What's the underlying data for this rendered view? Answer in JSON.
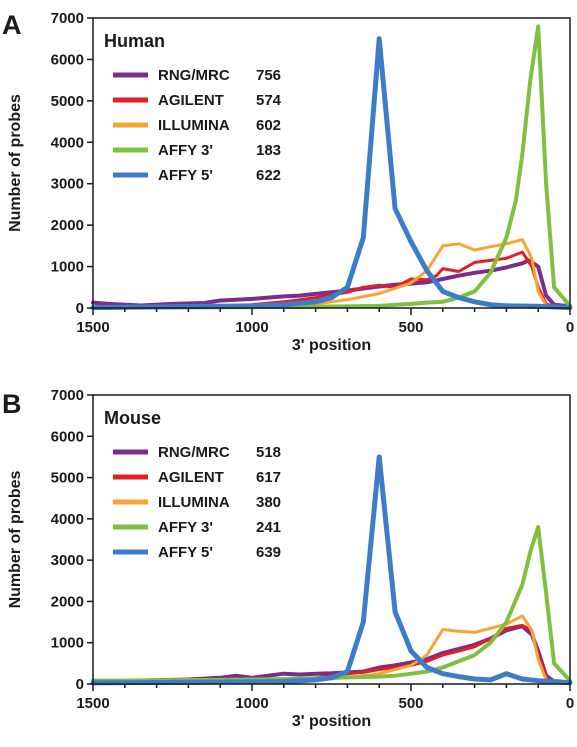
{
  "chart_data": [
    {
      "type": "line",
      "panel_letter": "A",
      "title": "Human",
      "xlabel": "3' position",
      "ylabel": "Number of probes",
      "xlim": [
        1500,
        0
      ],
      "ylim": [
        0,
        7000
      ],
      "x_reversed": true,
      "xticks": [
        1500,
        1000,
        500,
        0
      ],
      "yticks": [
        0,
        1000,
        2000,
        3000,
        4000,
        5000,
        6000,
        7000
      ],
      "legend_position": "top-left",
      "series": [
        {
          "name": "RNG/MRC",
          "count": "756",
          "color": "#7b2d8e",
          "width": 4,
          "points": [
            [
              1500,
              130
            ],
            [
              1450,
              100
            ],
            [
              1350,
              60
            ],
            [
              1250,
              100
            ],
            [
              1150,
              120
            ],
            [
              1100,
              180
            ],
            [
              1050,
              200
            ],
            [
              1000,
              220
            ],
            [
              950,
              250
            ],
            [
              900,
              280
            ],
            [
              850,
              300
            ],
            [
              800,
              340
            ],
            [
              750,
              380
            ],
            [
              700,
              420
            ],
            [
              650,
              470
            ],
            [
              600,
              520
            ],
            [
              550,
              560
            ],
            [
              500,
              590
            ],
            [
              450,
              620
            ],
            [
              400,
              700
            ],
            [
              350,
              780
            ],
            [
              300,
              850
            ],
            [
              250,
              900
            ],
            [
              200,
              980
            ],
            [
              150,
              1080
            ],
            [
              130,
              1150
            ],
            [
              100,
              1000
            ],
            [
              75,
              300
            ],
            [
              50,
              80
            ],
            [
              0,
              40
            ]
          ]
        },
        {
          "name": "AGILENT",
          "count": "574",
          "color": "#e31e24",
          "width": 3,
          "points": [
            [
              1500,
              20
            ],
            [
              1200,
              30
            ],
            [
              1000,
              80
            ],
            [
              900,
              150
            ],
            [
              800,
              250
            ],
            [
              700,
              380
            ],
            [
              650,
              500
            ],
            [
              600,
              550
            ],
            [
              550,
              500
            ],
            [
              500,
              700
            ],
            [
              450,
              680
            ],
            [
              420,
              780
            ],
            [
              400,
              950
            ],
            [
              350,
              880
            ],
            [
              300,
              1100
            ],
            [
              250,
              1150
            ],
            [
              200,
              1200
            ],
            [
              150,
              1350
            ],
            [
              120,
              1000
            ],
            [
              100,
              500
            ],
            [
              75,
              100
            ],
            [
              50,
              30
            ],
            [
              0,
              20
            ]
          ]
        },
        {
          "name": "ILLUMINA",
          "count": "602",
          "color": "#f6a531",
          "width": 3,
          "points": [
            [
              1500,
              10
            ],
            [
              1200,
              20
            ],
            [
              900,
              50
            ],
            [
              800,
              100
            ],
            [
              700,
              200
            ],
            [
              600,
              350
            ],
            [
              500,
              600
            ],
            [
              450,
              900
            ],
            [
              400,
              1500
            ],
            [
              350,
              1550
            ],
            [
              300,
              1400
            ],
            [
              250,
              1480
            ],
            [
              200,
              1550
            ],
            [
              150,
              1650
            ],
            [
              120,
              1200
            ],
            [
              100,
              400
            ],
            [
              75,
              60
            ],
            [
              50,
              20
            ],
            [
              0,
              10
            ]
          ]
        },
        {
          "name": "AFFY 3'",
          "count": "183",
          "color": "#7fc13f",
          "width": 4,
          "points": [
            [
              1500,
              10
            ],
            [
              1000,
              20
            ],
            [
              800,
              30
            ],
            [
              600,
              50
            ],
            [
              500,
              100
            ],
            [
              450,
              130
            ],
            [
              400,
              150
            ],
            [
              350,
              250
            ],
            [
              300,
              400
            ],
            [
              250,
              850
            ],
            [
              200,
              1700
            ],
            [
              170,
              2600
            ],
            [
              150,
              3700
            ],
            [
              125,
              5500
            ],
            [
              100,
              6800
            ],
            [
              75,
              3000
            ],
            [
              50,
              500
            ],
            [
              0,
              50
            ]
          ]
        },
        {
          "name": "AFFY 5'",
          "count": "622",
          "color": "#3d7dc8",
          "width": 5,
          "points": [
            [
              1500,
              10
            ],
            [
              1000,
              50
            ],
            [
              900,
              80
            ],
            [
              800,
              150
            ],
            [
              750,
              250
            ],
            [
              700,
              500
            ],
            [
              650,
              1700
            ],
            [
              600,
              6500
            ],
            [
              550,
              2400
            ],
            [
              500,
              1600
            ],
            [
              450,
              900
            ],
            [
              400,
              400
            ],
            [
              350,
              250
            ],
            [
              300,
              150
            ],
            [
              250,
              80
            ],
            [
              200,
              50
            ],
            [
              100,
              40
            ],
            [
              0,
              10
            ]
          ]
        }
      ]
    },
    {
      "type": "line",
      "panel_letter": "B",
      "title": "Mouse",
      "xlabel": "3' position",
      "ylabel": "Number of probes",
      "xlim": [
        1500,
        0
      ],
      "ylim": [
        0,
        7000
      ],
      "x_reversed": true,
      "xticks": [
        1500,
        1000,
        500,
        0
      ],
      "yticks": [
        0,
        1000,
        2000,
        3000,
        4000,
        5000,
        6000,
        7000
      ],
      "legend_position": "top-left",
      "series": [
        {
          "name": "RNG/MRC",
          "count": "518",
          "color": "#7b2d8e",
          "width": 4,
          "points": [
            [
              1500,
              80
            ],
            [
              1400,
              70
            ],
            [
              1300,
              90
            ],
            [
              1200,
              110
            ],
            [
              1100,
              150
            ],
            [
              1050,
              200
            ],
            [
              1000,
              150
            ],
            [
              950,
              200
            ],
            [
              900,
              250
            ],
            [
              850,
              230
            ],
            [
              800,
              250
            ],
            [
              750,
              260
            ],
            [
              700,
              280
            ],
            [
              650,
              300
            ],
            [
              600,
              400
            ],
            [
              550,
              450
            ],
            [
              500,
              520
            ],
            [
              450,
              600
            ],
            [
              400,
              750
            ],
            [
              350,
              850
            ],
            [
              300,
              950
            ],
            [
              250,
              1100
            ],
            [
              200,
              1300
            ],
            [
              150,
              1400
            ],
            [
              120,
              1200
            ],
            [
              100,
              800
            ],
            [
              75,
              200
            ],
            [
              50,
              60
            ],
            [
              0,
              30
            ]
          ]
        },
        {
          "name": "AGILENT",
          "count": "617",
          "color": "#e31e24",
          "width": 3,
          "points": [
            [
              1500,
              20
            ],
            [
              1200,
              30
            ],
            [
              1000,
              60
            ],
            [
              800,
              150
            ],
            [
              700,
              250
            ],
            [
              650,
              280
            ],
            [
              600,
              350
            ],
            [
              550,
              400
            ],
            [
              500,
              450
            ],
            [
              450,
              550
            ],
            [
              400,
              700
            ],
            [
              350,
              800
            ],
            [
              300,
              900
            ],
            [
              250,
              1100
            ],
            [
              200,
              1350
            ],
            [
              150,
              1420
            ],
            [
              120,
              1300
            ],
            [
              100,
              700
            ],
            [
              75,
              150
            ],
            [
              50,
              40
            ],
            [
              0,
              20
            ]
          ]
        },
        {
          "name": "ILLUMINA",
          "count": "380",
          "color": "#f6a531",
          "width": 3,
          "points": [
            [
              1500,
              10
            ],
            [
              1200,
              20
            ],
            [
              900,
              60
            ],
            [
              700,
              150
            ],
            [
              600,
              250
            ],
            [
              500,
              450
            ],
            [
              450,
              700
            ],
            [
              400,
              1320
            ],
            [
              350,
              1280
            ],
            [
              300,
              1250
            ],
            [
              250,
              1350
            ],
            [
              200,
              1450
            ],
            [
              150,
              1650
            ],
            [
              120,
              1300
            ],
            [
              100,
              600
            ],
            [
              75,
              100
            ],
            [
              50,
              30
            ],
            [
              0,
              10
            ]
          ]
        },
        {
          "name": "AFFY 3'",
          "count": "241",
          "color": "#7fc13f",
          "width": 4,
          "points": [
            [
              1500,
              80
            ],
            [
              1300,
              90
            ],
            [
              1100,
              100
            ],
            [
              1000,
              110
            ],
            [
              900,
              120
            ],
            [
              800,
              140
            ],
            [
              700,
              160
            ],
            [
              650,
              170
            ],
            [
              600,
              180
            ],
            [
              550,
              200
            ],
            [
              500,
              250
            ],
            [
              450,
              300
            ],
            [
              400,
              400
            ],
            [
              350,
              550
            ],
            [
              300,
              700
            ],
            [
              250,
              1000
            ],
            [
              200,
              1500
            ],
            [
              150,
              2400
            ],
            [
              125,
              3200
            ],
            [
              100,
              3800
            ],
            [
              75,
              2200
            ],
            [
              50,
              500
            ],
            [
              0,
              80
            ]
          ]
        },
        {
          "name": "AFFY 5'",
          "count": "639",
          "color": "#3d7dc8",
          "width": 5,
          "points": [
            [
              1500,
              30
            ],
            [
              1000,
              50
            ],
            [
              900,
              60
            ],
            [
              800,
              100
            ],
            [
              750,
              150
            ],
            [
              700,
              300
            ],
            [
              650,
              1500
            ],
            [
              600,
              5500
            ],
            [
              550,
              1750
            ],
            [
              500,
              800
            ],
            [
              450,
              400
            ],
            [
              400,
              250
            ],
            [
              350,
              180
            ],
            [
              300,
              120
            ],
            [
              250,
              100
            ],
            [
              200,
              250
            ],
            [
              150,
              120
            ],
            [
              100,
              80
            ],
            [
              50,
              60
            ],
            [
              0,
              30
            ]
          ]
        }
      ]
    }
  ]
}
